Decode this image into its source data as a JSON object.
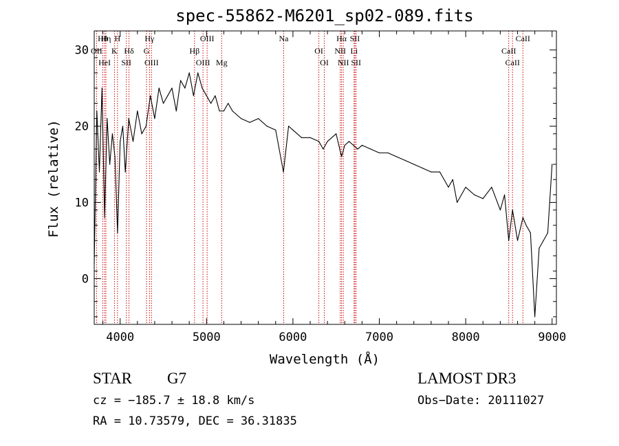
{
  "chart_data": {
    "type": "line",
    "title": "spec-55862-M6201_sp02-089.fits",
    "xlabel": "Wavelength (Å)",
    "ylabel": "Flux (relative)",
    "xlim": [
      3700,
      9050
    ],
    "ylim": [
      -6,
      32.5
    ],
    "x_ticks": [
      4000,
      5000,
      6000,
      7000,
      8000,
      9000
    ],
    "y_ticks": [
      0,
      10,
      20,
      30
    ],
    "line_color": "#000000",
    "marker_color": "#cc0000",
    "series": [
      {
        "name": "flux",
        "x": [
          3700,
          3730,
          3760,
          3790,
          3820,
          3850,
          3880,
          3910,
          3940,
          3970,
          4000,
          4030,
          4060,
          4100,
          4150,
          4200,
          4250,
          4300,
          4350,
          4400,
          4450,
          4500,
          4550,
          4600,
          4650,
          4700,
          4750,
          4800,
          4850,
          4900,
          4950,
          5000,
          5050,
          5100,
          5150,
          5200,
          5250,
          5300,
          5400,
          5500,
          5600,
          5700,
          5800,
          5890,
          5950,
          6000,
          6100,
          6200,
          6300,
          6350,
          6400,
          6500,
          6563,
          6600,
          6650,
          6700,
          6750,
          6800,
          6900,
          7000,
          7100,
          7200,
          7300,
          7400,
          7500,
          7600,
          7700,
          7800,
          7850,
          7900,
          8000,
          8100,
          8200,
          8300,
          8400,
          8450,
          8498,
          8542,
          8600,
          8662,
          8700,
          8750,
          8800,
          8850,
          8900,
          8950,
          9000
        ],
        "values": [
          2,
          22,
          14,
          25,
          8,
          21,
          15,
          19,
          16,
          6,
          18,
          20,
          14,
          21,
          18,
          22,
          19,
          20,
          24,
          21,
          25,
          23,
          24,
          25,
          22,
          26,
          25,
          27,
          24,
          27,
          25,
          24,
          23,
          24,
          22,
          22,
          23,
          22,
          21,
          20.5,
          21,
          20,
          19.5,
          14,
          20,
          19.5,
          18.5,
          18.5,
          18,
          17,
          18,
          19,
          16,
          17.5,
          18,
          17.5,
          17,
          17.5,
          17,
          16.5,
          16.5,
          16,
          15.5,
          15,
          14.5,
          14,
          14,
          12,
          13,
          10,
          12,
          11,
          10.5,
          12,
          9,
          11,
          5,
          9,
          5,
          8,
          7,
          6,
          -5,
          4,
          5,
          6,
          15
        ]
      }
    ],
    "lines": [
      {
        "label": "Hθ",
        "wavelength": 3798
      },
      {
        "label": "OII",
        "wavelength": 3727
      },
      {
        "label": "HeI",
        "wavelength": 3820
      },
      {
        "label": "Hη",
        "wavelength": 3835
      },
      {
        "label": "K",
        "wavelength": 3934
      },
      {
        "label": "SII",
        "wavelength": 4072
      },
      {
        "label": "H",
        "wavelength": 3969
      },
      {
        "label": "Hδ",
        "wavelength": 4102
      },
      {
        "label": "OIII",
        "wavelength": 4363
      },
      {
        "label": "Hγ",
        "wavelength": 4340
      },
      {
        "label": "G",
        "wavelength": 4305
      },
      {
        "label": "OIII",
        "wavelength": 4959
      },
      {
        "label": "OIII",
        "wavelength": 5007
      },
      {
        "label": "Hβ",
        "wavelength": 4861
      },
      {
        "label": "Mg",
        "wavelength": 5175
      },
      {
        "label": "Na",
        "wavelength": 5893
      },
      {
        "label": "OI",
        "wavelength": 6300
      },
      {
        "label": "OI",
        "wavelength": 6363
      },
      {
        "label": "Hα",
        "wavelength": 6563
      },
      {
        "label": "NII",
        "wavelength": 6548
      },
      {
        "label": "NII",
        "wavelength": 6583
      },
      {
        "label": "SII",
        "wavelength": 6717
      },
      {
        "label": "Li",
        "wavelength": 6708
      },
      {
        "label": "SII",
        "wavelength": 6731
      },
      {
        "label": "CaII",
        "wavelength": 8662
      },
      {
        "label": "CaII",
        "wavelength": 8498
      },
      {
        "label": "CaII",
        "wavelength": 8542
      }
    ]
  },
  "info": {
    "class_label": "STAR",
    "subclass": "G7",
    "survey": "LAMOST DR3",
    "cz": "cz = −185.7 ± 18.8 km/s",
    "obs_date": "Obs−Date: 20111027",
    "coords": "RA =  10.73579, DEC =  36.31835"
  }
}
